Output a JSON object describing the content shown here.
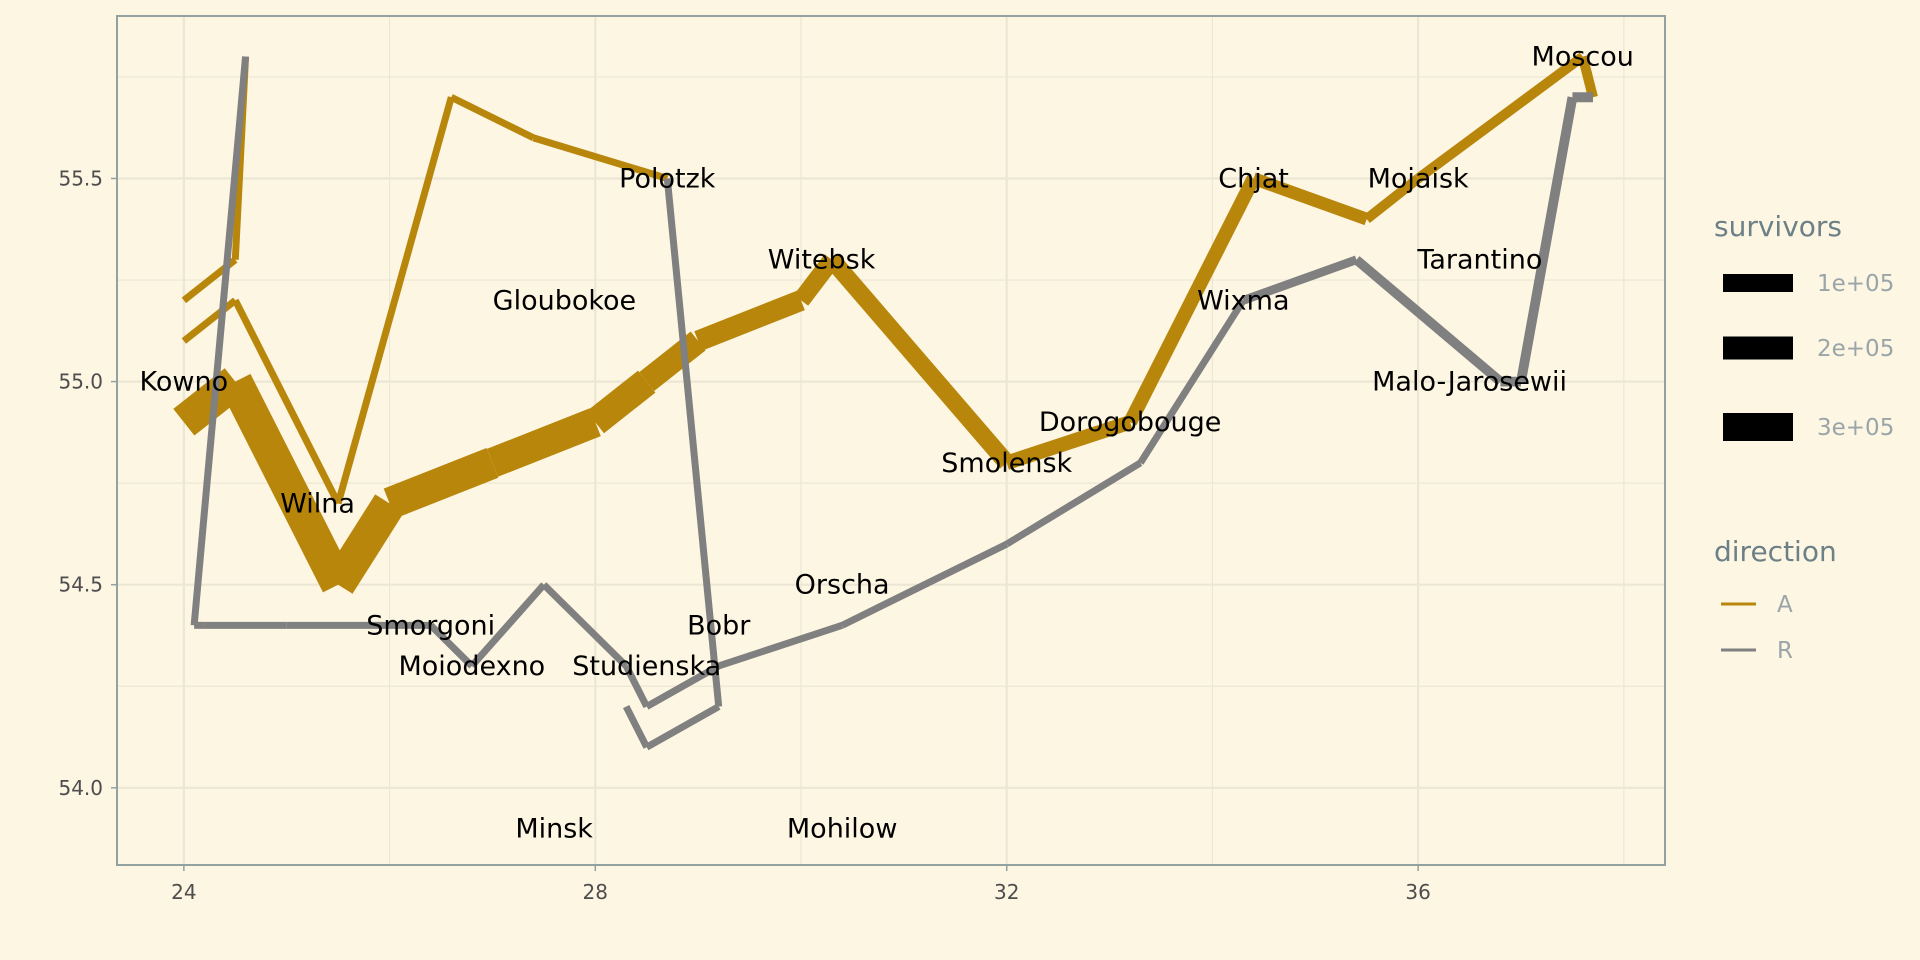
{
  "chart_data": {
    "type": "line",
    "title": "",
    "xlabel": "",
    "ylabel": "",
    "xlim": [
      23.35,
      38.4
    ],
    "ylim": [
      53.81,
      55.9
    ],
    "x_ticks": [
      24,
      28,
      32,
      36
    ],
    "x_tick_labels": [
      "24",
      "28",
      "32",
      "36"
    ],
    "x_minor": [
      26,
      30,
      34,
      38
    ],
    "y_ticks": [
      54.0,
      54.5,
      55.0,
      55.5
    ],
    "y_tick_labels": [
      "54.0",
      "54.5",
      "55.0",
      "55.5"
    ],
    "y_minor": [
      54.25,
      54.75,
      55.25,
      55.75
    ],
    "grid": true,
    "legend_position": "right",
    "colors": {
      "A": "#b8860b",
      "R": "#808080",
      "background": "#fdf6e3",
      "grid": "#ece6d4",
      "axis": "#93a1a1"
    },
    "legend": {
      "survivors_title": "survivors",
      "survivors": [
        {
          "label": "1e+05",
          "value": 100000
        },
        {
          "label": "2e+05",
          "value": 200000
        },
        {
          "label": "3e+05",
          "value": 300000
        }
      ],
      "direction_title": "direction",
      "direction": [
        {
          "label": "A",
          "key": "A"
        },
        {
          "label": "R",
          "key": "R"
        }
      ]
    },
    "series": [
      {
        "direction": "A",
        "points": [
          {
            "x": 24.0,
            "y": 54.9,
            "survivors": 340000
          },
          {
            "x": 24.5,
            "y": 55.0,
            "survivors": 340000
          },
          {
            "x": 25.5,
            "y": 54.5,
            "survivors": 340000
          },
          {
            "x": 26.0,
            "y": 54.7,
            "survivors": 320000
          },
          {
            "x": 27.0,
            "y": 54.8,
            "survivors": 300000
          },
          {
            "x": 28.0,
            "y": 54.9,
            "survivors": 280000
          },
          {
            "x": 28.5,
            "y": 55.0,
            "survivors": 240000
          },
          {
            "x": 29.0,
            "y": 55.1,
            "survivors": 210000
          },
          {
            "x": 30.0,
            "y": 55.2,
            "survivors": 180000
          },
          {
            "x": 30.3,
            "y": 55.3,
            "survivors": 175000
          },
          {
            "x": 32.0,
            "y": 54.8,
            "survivors": 145000
          },
          {
            "x": 33.2,
            "y": 54.9,
            "survivors": 140000
          },
          {
            "x": 34.4,
            "y": 55.5,
            "survivors": 127100
          },
          {
            "x": 35.5,
            "y": 55.4,
            "survivors": 100000
          },
          {
            "x": 36.0,
            "y": 55.5,
            "survivors": 100000
          },
          {
            "x": 37.6,
            "y": 55.8,
            "survivors": 100000
          },
          {
            "x": 37.7,
            "y": 55.7,
            "survivors": 100000
          }
        ]
      },
      {
        "direction": "A",
        "points": [
          {
            "x": 24.0,
            "y": 55.1,
            "survivors": 60000
          },
          {
            "x": 24.5,
            "y": 55.2,
            "survivors": 60000
          },
          {
            "x": 25.5,
            "y": 54.7,
            "survivors": 60000
          },
          {
            "x": 26.6,
            "y": 55.7,
            "survivors": 40000
          },
          {
            "x": 27.4,
            "y": 55.6,
            "survivors": 33000
          },
          {
            "x": 28.7,
            "y": 55.5,
            "survivors": 33000
          }
        ]
      },
      {
        "direction": "A",
        "points": [
          {
            "x": 24.0,
            "y": 55.2,
            "survivors": 22000
          },
          {
            "x": 24.5,
            "y": 55.3,
            "survivors": 22000
          },
          {
            "x": 24.6,
            "y": 55.8,
            "survivors": 6000
          }
        ]
      },
      {
        "direction": "R",
        "points": [
          {
            "x": 37.7,
            "y": 55.7,
            "survivors": 100000
          },
          {
            "x": 37.5,
            "y": 55.7,
            "survivors": 98000
          },
          {
            "x": 37.0,
            "y": 55.0,
            "survivors": 97000
          },
          {
            "x": 36.8,
            "y": 55.0,
            "survivors": 96000
          },
          {
            "x": 35.4,
            "y": 55.3,
            "survivors": 87000
          },
          {
            "x": 34.3,
            "y": 55.2,
            "survivors": 55000
          },
          {
            "x": 33.3,
            "y": 54.8,
            "survivors": 37000
          },
          {
            "x": 32.0,
            "y": 54.6,
            "survivors": 24000
          },
          {
            "x": 30.4,
            "y": 54.4,
            "survivors": 20000
          },
          {
            "x": 29.2,
            "y": 54.3,
            "survivors": 20000
          },
          {
            "x": 28.5,
            "y": 54.2,
            "survivors": 20000
          },
          {
            "x": 28.3,
            "y": 54.3,
            "survivors": 20000
          },
          {
            "x": 27.5,
            "y": 54.5,
            "survivors": 20000
          },
          {
            "x": 26.8,
            "y": 54.3,
            "survivors": 12000
          },
          {
            "x": 26.4,
            "y": 54.4,
            "survivors": 14000
          },
          {
            "x": 25.0,
            "y": 54.4,
            "survivors": 8000
          },
          {
            "x": 24.4,
            "y": 54.4,
            "survivors": 4000
          },
          {
            "x": 24.2,
            "y": 54.4,
            "survivors": 4000
          },
          {
            "x": 24.1,
            "y": 54.4,
            "survivors": 4000
          }
        ]
      },
      {
        "direction": "R",
        "points": [
          {
            "x": 28.7,
            "y": 55.5,
            "survivors": 30000
          },
          {
            "x": 29.2,
            "y": 54.2,
            "survivors": 30000
          },
          {
            "x": 28.5,
            "y": 54.1,
            "survivors": 30000
          },
          {
            "x": 28.3,
            "y": 54.2,
            "survivors": 28000
          }
        ]
      },
      {
        "direction": "R",
        "points": [
          {
            "x": 24.1,
            "y": 54.4,
            "survivors": 4000
          },
          {
            "x": 24.6,
            "y": 55.8,
            "survivors": 6000
          }
        ]
      }
    ],
    "cities": [
      {
        "name": "Kowno",
        "x": 24.0,
        "y": 55.0
      },
      {
        "name": "Wilna",
        "x": 25.3,
        "y": 54.7
      },
      {
        "name": "Smorgoni",
        "x": 26.4,
        "y": 54.4
      },
      {
        "name": "Moiodexno",
        "x": 26.8,
        "y": 54.3
      },
      {
        "name": "Gloubokoe",
        "x": 27.7,
        "y": 55.2
      },
      {
        "name": "Minsk",
        "x": 27.6,
        "y": 53.9
      },
      {
        "name": "Studienska",
        "x": 28.5,
        "y": 54.3
      },
      {
        "name": "Polotzk",
        "x": 28.7,
        "y": 55.5
      },
      {
        "name": "Bobr",
        "x": 29.2,
        "y": 54.4
      },
      {
        "name": "Witebsk",
        "x": 30.2,
        "y": 55.3
      },
      {
        "name": "Orscha",
        "x": 30.4,
        "y": 54.5
      },
      {
        "name": "Mohilow",
        "x": 30.4,
        "y": 53.9
      },
      {
        "name": "Smolensk",
        "x": 32.0,
        "y": 54.8
      },
      {
        "name": "Dorogobouge",
        "x": 33.2,
        "y": 54.9
      },
      {
        "name": "Wixma",
        "x": 34.3,
        "y": 55.2
      },
      {
        "name": "Chjat",
        "x": 34.4,
        "y": 55.5
      },
      {
        "name": "Mojaisk",
        "x": 36.0,
        "y": 55.5
      },
      {
        "name": "Moscou",
        "x": 37.6,
        "y": 55.8
      },
      {
        "name": "Tarantino",
        "x": 36.6,
        "y": 55.3
      },
      {
        "name": "Malo-Jarosewii",
        "x": 36.5,
        "y": 55.0
      }
    ]
  }
}
